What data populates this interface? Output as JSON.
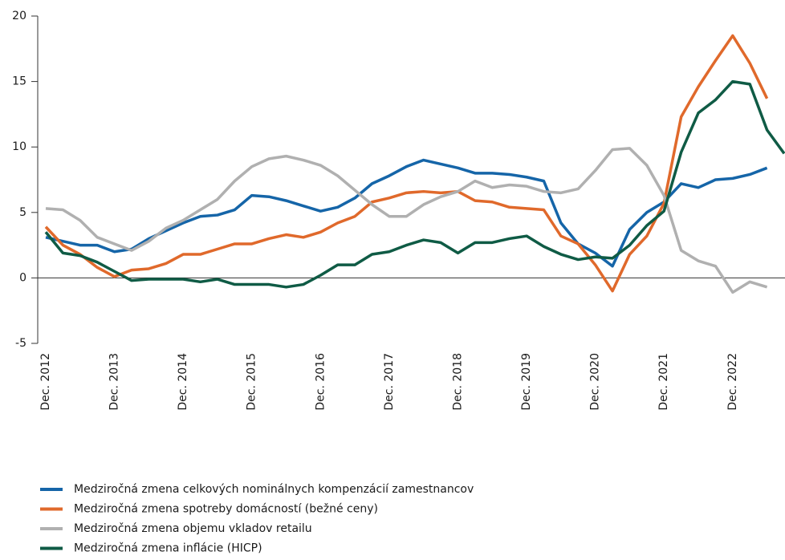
{
  "chart_data": {
    "type": "line",
    "categories": [
      "Dec. 2012",
      null,
      null,
      null,
      "Dec. 2013",
      null,
      null,
      null,
      "Dec. 2014",
      null,
      null,
      null,
      "Dec. 2015",
      null,
      null,
      null,
      "Dec. 2016",
      null,
      null,
      null,
      "Dec. 2017",
      null,
      null,
      null,
      "Dec. 2018",
      null,
      null,
      null,
      "Dec. 2019",
      null,
      null,
      null,
      "Dec. 2020",
      null,
      null,
      null,
      "Dec. 2021",
      null,
      null,
      null,
      "Dec. 2022",
      null,
      null,
      null
    ],
    "series": [
      {
        "name": "Medziročná zmena celkových nominálnych kompenzácií zamestnancov",
        "color": "#1565a8",
        "values": [
          3.1,
          2.8,
          2.5,
          2.5,
          2.0,
          2.2,
          3.0,
          3.6,
          4.2,
          4.7,
          4.8,
          5.2,
          6.3,
          6.2,
          5.9,
          5.5,
          5.1,
          5.4,
          6.1,
          7.2,
          7.8,
          8.5,
          9.0,
          8.7,
          8.4,
          8.0,
          8.0,
          7.9,
          7.7,
          7.4,
          4.2,
          2.6,
          1.9,
          0.9,
          3.7,
          5.0,
          5.8,
          7.2,
          6.9,
          7.5,
          7.6,
          7.9,
          8.4,
          null
        ]
      },
      {
        "name": "Medziročná zmena spotreby domácností (bežné ceny)",
        "color": "#e0692b",
        "values": [
          3.9,
          2.5,
          1.8,
          0.8,
          0.1,
          0.6,
          0.7,
          1.1,
          1.8,
          1.8,
          2.2,
          2.6,
          2.6,
          3.0,
          3.3,
          3.1,
          3.5,
          4.2,
          4.7,
          5.8,
          6.1,
          6.5,
          6.6,
          6.5,
          6.6,
          5.9,
          5.8,
          5.4,
          5.3,
          5.2,
          3.2,
          2.6,
          1.0,
          -1.0,
          1.8,
          3.2,
          5.7,
          12.3,
          14.6,
          16.6,
          18.5,
          16.4,
          13.7,
          null
        ]
      },
      {
        "name": "Medziročná zmena objemu vkladov retailu",
        "color": "#b0b0b0",
        "values": [
          5.3,
          5.2,
          4.4,
          3.1,
          2.6,
          2.1,
          2.8,
          3.8,
          4.4,
          5.2,
          6.0,
          7.4,
          8.5,
          9.1,
          9.3,
          9.0,
          8.6,
          7.8,
          6.7,
          5.6,
          4.7,
          4.7,
          5.6,
          6.2,
          6.6,
          7.4,
          6.9,
          7.1,
          7.0,
          6.6,
          6.5,
          6.8,
          8.2,
          9.8,
          9.9,
          8.6,
          6.3,
          2.1,
          1.3,
          0.9,
          -1.1,
          -0.3,
          -0.7,
          null
        ]
      },
      {
        "name": "Medziročná zmena inflácie (HICP)",
        "color": "#0f5b45",
        "values": [
          3.5,
          1.9,
          1.7,
          1.2,
          0.5,
          -0.2,
          -0.1,
          -0.1,
          -0.1,
          -0.3,
          -0.1,
          -0.5,
          -0.5,
          -0.5,
          -0.7,
          -0.5,
          0.2,
          1.0,
          1.0,
          1.8,
          2.0,
          2.5,
          2.9,
          2.7,
          1.9,
          2.7,
          2.7,
          3.0,
          3.2,
          2.4,
          1.8,
          1.4,
          1.6,
          1.5,
          2.5,
          4.0,
          5.1,
          9.6,
          12.6,
          13.6,
          15.0,
          14.8,
          11.3,
          9.5
        ]
      }
    ],
    "ylim": [
      -5,
      20
    ],
    "yticks": [
      -5,
      0,
      5,
      10,
      15,
      20
    ]
  }
}
